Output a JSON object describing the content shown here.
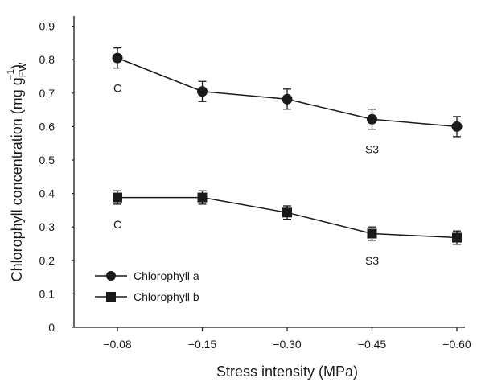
{
  "chart_data": {
    "type": "line",
    "xlabel": "Stress intensity (MPa)",
    "ylabel": "Chlorophyll concentration (mg g",
    "ylabel_sub": "FW",
    "ylabel_sup": "−1",
    "ylabel_close": ")",
    "categories": [
      "−0.08",
      "−0.15",
      "−0.30",
      "−0.45",
      "−0.60"
    ],
    "ylim": [
      0,
      0.9
    ],
    "yticks": [
      "0",
      "0.1",
      "0.2",
      "0.3",
      "0.4",
      "0.5",
      "0.6",
      "0.7",
      "0.8",
      "0.9"
    ],
    "grid": false,
    "legend_position": "bottom-left",
    "series": [
      {
        "name": "Chlorophyll a",
        "marker": "circle",
        "values": [
          0.805,
          0.705,
          0.682,
          0.622,
          0.6
        ],
        "errors": [
          0.03,
          0.03,
          0.03,
          0.03,
          0.03
        ]
      },
      {
        "name": "Chlorophyll b",
        "marker": "square",
        "values": [
          0.388,
          0.388,
          0.343,
          0.28,
          0.268
        ],
        "errors": [
          0.02,
          0.02,
          0.02,
          0.02,
          0.02
        ]
      }
    ],
    "annotations": [
      {
        "text": "C",
        "series": 0,
        "index": 0
      },
      {
        "text": "S3",
        "series": 0,
        "index": 3
      },
      {
        "text": "C",
        "series": 1,
        "index": 0
      },
      {
        "text": "S3",
        "series": 1,
        "index": 3
      }
    ]
  }
}
